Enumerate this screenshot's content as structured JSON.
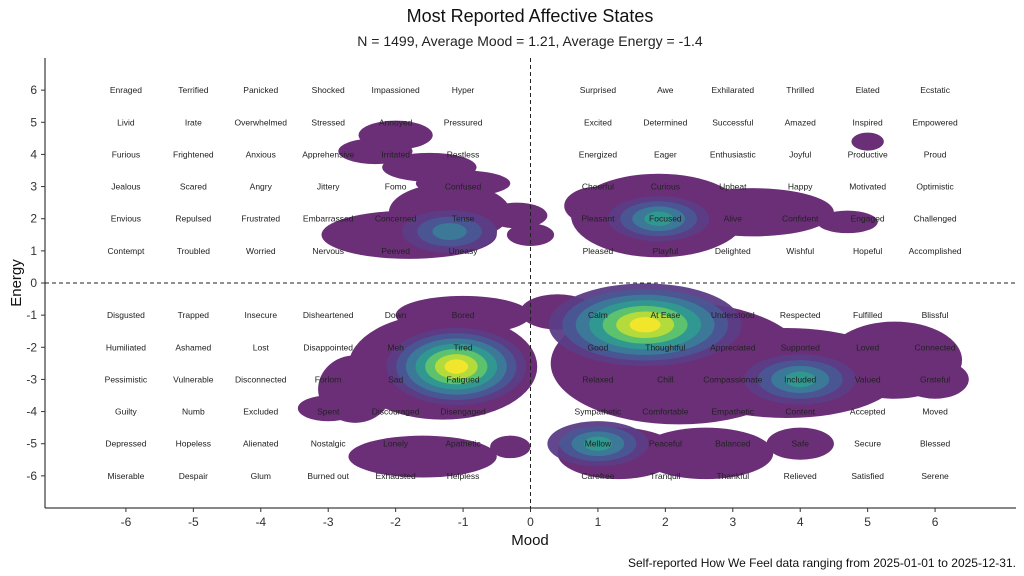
{
  "chart_data": {
    "type": "density",
    "title": "Most Reported Affective States",
    "subtitle": "N = 1499, Average Mood = 1.21, Average Energy = -1.4",
    "xlabel": "Mood",
    "ylabel": "Energy",
    "caption": "Self-reported How We Feel data ranging from 2025-01-01 to 2025-12-31.",
    "xlim": [
      -7.2,
      7.2
    ],
    "ylim": [
      -7.0,
      7.0
    ],
    "x_ticks": [
      -6,
      -5,
      -4,
      -3,
      -2,
      -1,
      0,
      1,
      2,
      3,
      4,
      5,
      6
    ],
    "y_ticks": [
      6,
      5,
      4,
      3,
      2,
      1,
      0,
      -1,
      -2,
      -3,
      -4,
      -5,
      -6
    ],
    "reference_lines": {
      "x": 0,
      "y": 0,
      "style": "dashed"
    },
    "grid": false,
    "palette": [
      "#6b2f78",
      "#5b3d86",
      "#4a5794",
      "#3b7b98",
      "#2f9a8f",
      "#5fc46b",
      "#b8dc3a",
      "#f5e72b"
    ],
    "density_peaks": [
      {
        "x": 1.7,
        "y": -1.3,
        "level": 8
      },
      {
        "x": -1.1,
        "y": -2.6,
        "level": 8
      },
      {
        "x": 1.9,
        "y": 2.0,
        "level": 5
      },
      {
        "x": 4.0,
        "y": -3.0,
        "level": 5
      },
      {
        "x": -1.2,
        "y": 1.6,
        "level": 4
      },
      {
        "x": 1.0,
        "y": -5.0,
        "level": 5
      },
      {
        "x": 5.0,
        "y": 4.4,
        "level": 1
      }
    ],
    "emotions": [
      {
        "label": "Enraged",
        "x": -6,
        "y": 6
      },
      {
        "label": "Terrified",
        "x": -5,
        "y": 6
      },
      {
        "label": "Panicked",
        "x": -4,
        "y": 6
      },
      {
        "label": "Shocked",
        "x": -3,
        "y": 6
      },
      {
        "label": "Impassioned",
        "x": -2,
        "y": 6
      },
      {
        "label": "Hyper",
        "x": -1,
        "y": 6
      },
      {
        "label": "Surprised",
        "x": 1,
        "y": 6
      },
      {
        "label": "Awe",
        "x": 2,
        "y": 6
      },
      {
        "label": "Exhilarated",
        "x": 3,
        "y": 6
      },
      {
        "label": "Thrilled",
        "x": 4,
        "y": 6
      },
      {
        "label": "Elated",
        "x": 5,
        "y": 6
      },
      {
        "label": "Ecstatic",
        "x": 6,
        "y": 6
      },
      {
        "label": "Livid",
        "x": -6,
        "y": 5
      },
      {
        "label": "Irate",
        "x": -5,
        "y": 5
      },
      {
        "label": "Overwhelmed",
        "x": -4,
        "y": 5
      },
      {
        "label": "Stressed",
        "x": -3,
        "y": 5
      },
      {
        "label": "Annoyed",
        "x": -2,
        "y": 5
      },
      {
        "label": "Pressured",
        "x": -1,
        "y": 5
      },
      {
        "label": "Excited",
        "x": 1,
        "y": 5
      },
      {
        "label": "Determined",
        "x": 2,
        "y": 5
      },
      {
        "label": "Successful",
        "x": 3,
        "y": 5
      },
      {
        "label": "Amazed",
        "x": 4,
        "y": 5
      },
      {
        "label": "Inspired",
        "x": 5,
        "y": 5
      },
      {
        "label": "Empowered",
        "x": 6,
        "y": 5
      },
      {
        "label": "Furious",
        "x": -6,
        "y": 4
      },
      {
        "label": "Frightened",
        "x": -5,
        "y": 4
      },
      {
        "label": "Anxious",
        "x": -4,
        "y": 4
      },
      {
        "label": "Apprehensive",
        "x": -3,
        "y": 4
      },
      {
        "label": "Irritated",
        "x": -2,
        "y": 4
      },
      {
        "label": "Restless",
        "x": -1,
        "y": 4
      },
      {
        "label": "Energized",
        "x": 1,
        "y": 4
      },
      {
        "label": "Eager",
        "x": 2,
        "y": 4
      },
      {
        "label": "Enthusiastic",
        "x": 3,
        "y": 4
      },
      {
        "label": "Joyful",
        "x": 4,
        "y": 4
      },
      {
        "label": "Productive",
        "x": 5,
        "y": 4
      },
      {
        "label": "Proud",
        "x": 6,
        "y": 4
      },
      {
        "label": "Jealous",
        "x": -6,
        "y": 3
      },
      {
        "label": "Scared",
        "x": -5,
        "y": 3
      },
      {
        "label": "Angry",
        "x": -4,
        "y": 3
      },
      {
        "label": "Jittery",
        "x": -3,
        "y": 3
      },
      {
        "label": "Fomo",
        "x": -2,
        "y": 3
      },
      {
        "label": "Confused",
        "x": -1,
        "y": 3
      },
      {
        "label": "Cheerful",
        "x": 1,
        "y": 3
      },
      {
        "label": "Curious",
        "x": 2,
        "y": 3
      },
      {
        "label": "Upbeat",
        "x": 3,
        "y": 3
      },
      {
        "label": "Happy",
        "x": 4,
        "y": 3
      },
      {
        "label": "Motivated",
        "x": 5,
        "y": 3
      },
      {
        "label": "Optimistic",
        "x": 6,
        "y": 3
      },
      {
        "label": "Envious",
        "x": -6,
        "y": 2
      },
      {
        "label": "Repulsed",
        "x": -5,
        "y": 2
      },
      {
        "label": "Frustrated",
        "x": -4,
        "y": 2
      },
      {
        "label": "Embarrassed",
        "x": -3,
        "y": 2
      },
      {
        "label": "Concerned",
        "x": -2,
        "y": 2
      },
      {
        "label": "Tense",
        "x": -1,
        "y": 2
      },
      {
        "label": "Pleasant",
        "x": 1,
        "y": 2
      },
      {
        "label": "Focused",
        "x": 2,
        "y": 2
      },
      {
        "label": "Alive",
        "x": 3,
        "y": 2
      },
      {
        "label": "Confident",
        "x": 4,
        "y": 2
      },
      {
        "label": "Engaged",
        "x": 5,
        "y": 2
      },
      {
        "label": "Challenged",
        "x": 6,
        "y": 2
      },
      {
        "label": "Contempt",
        "x": -6,
        "y": 1
      },
      {
        "label": "Troubled",
        "x": -5,
        "y": 1
      },
      {
        "label": "Worried",
        "x": -4,
        "y": 1
      },
      {
        "label": "Nervous",
        "x": -3,
        "y": 1
      },
      {
        "label": "Peeved",
        "x": -2,
        "y": 1
      },
      {
        "label": "Uneasy",
        "x": -1,
        "y": 1
      },
      {
        "label": "Pleased",
        "x": 1,
        "y": 1
      },
      {
        "label": "Playful",
        "x": 2,
        "y": 1
      },
      {
        "label": "Delighted",
        "x": 3,
        "y": 1
      },
      {
        "label": "Wishful",
        "x": 4,
        "y": 1
      },
      {
        "label": "Hopeful",
        "x": 5,
        "y": 1
      },
      {
        "label": "Accomplished",
        "x": 6,
        "y": 1
      },
      {
        "label": "Disgusted",
        "x": -6,
        "y": -1
      },
      {
        "label": "Trapped",
        "x": -5,
        "y": -1
      },
      {
        "label": "Insecure",
        "x": -4,
        "y": -1
      },
      {
        "label": "Disheartened",
        "x": -3,
        "y": -1
      },
      {
        "label": "Down",
        "x": -2,
        "y": -1
      },
      {
        "label": "Bored",
        "x": -1,
        "y": -1
      },
      {
        "label": "Calm",
        "x": 1,
        "y": -1
      },
      {
        "label": "At Ease",
        "x": 2,
        "y": -1
      },
      {
        "label": "Understood",
        "x": 3,
        "y": -1
      },
      {
        "label": "Respected",
        "x": 4,
        "y": -1
      },
      {
        "label": "Fulfilled",
        "x": 5,
        "y": -1
      },
      {
        "label": "Blissful",
        "x": 6,
        "y": -1
      },
      {
        "label": "Humiliated",
        "x": -6,
        "y": -2
      },
      {
        "label": "Ashamed",
        "x": -5,
        "y": -2
      },
      {
        "label": "Lost",
        "x": -4,
        "y": -2
      },
      {
        "label": "Disappointed",
        "x": -3,
        "y": -2
      },
      {
        "label": "Meh",
        "x": -2,
        "y": -2
      },
      {
        "label": "Tired",
        "x": -1,
        "y": -2
      },
      {
        "label": "Good",
        "x": 1,
        "y": -2
      },
      {
        "label": "Thoughtful",
        "x": 2,
        "y": -2
      },
      {
        "label": "Appreciated",
        "x": 3,
        "y": -2
      },
      {
        "label": "Supported",
        "x": 4,
        "y": -2
      },
      {
        "label": "Loved",
        "x": 5,
        "y": -2
      },
      {
        "label": "Connected",
        "x": 6,
        "y": -2
      },
      {
        "label": "Pessimistic",
        "x": -6,
        "y": -3
      },
      {
        "label": "Vulnerable",
        "x": -5,
        "y": -3
      },
      {
        "label": "Disconnected",
        "x": -4,
        "y": -3
      },
      {
        "label": "Forlorn",
        "x": -3,
        "y": -3
      },
      {
        "label": "Sad",
        "x": -2,
        "y": -3
      },
      {
        "label": "Fatigued",
        "x": -1,
        "y": -3
      },
      {
        "label": "Relaxed",
        "x": 1,
        "y": -3
      },
      {
        "label": "Chill",
        "x": 2,
        "y": -3
      },
      {
        "label": "Compassionate",
        "x": 3,
        "y": -3
      },
      {
        "label": "Included",
        "x": 4,
        "y": -3
      },
      {
        "label": "Valued",
        "x": 5,
        "y": -3
      },
      {
        "label": "Grateful",
        "x": 6,
        "y": -3
      },
      {
        "label": "Guilty",
        "x": -6,
        "y": -4
      },
      {
        "label": "Numb",
        "x": -5,
        "y": -4
      },
      {
        "label": "Excluded",
        "x": -4,
        "y": -4
      },
      {
        "label": "Spent",
        "x": -3,
        "y": -4
      },
      {
        "label": "Discouraged",
        "x": -2,
        "y": -4
      },
      {
        "label": "Disengaged",
        "x": -1,
        "y": -4
      },
      {
        "label": "Sympathetic",
        "x": 1,
        "y": -4
      },
      {
        "label": "Comfortable",
        "x": 2,
        "y": -4
      },
      {
        "label": "Empathetic",
        "x": 3,
        "y": -4
      },
      {
        "label": "Content",
        "x": 4,
        "y": -4
      },
      {
        "label": "Accepted",
        "x": 5,
        "y": -4
      },
      {
        "label": "Moved",
        "x": 6,
        "y": -4
      },
      {
        "label": "Depressed",
        "x": -6,
        "y": -5
      },
      {
        "label": "Hopeless",
        "x": -5,
        "y": -5
      },
      {
        "label": "Alienated",
        "x": -4,
        "y": -5
      },
      {
        "label": "Nostalgic",
        "x": -3,
        "y": -5
      },
      {
        "label": "Lonely",
        "x": -2,
        "y": -5
      },
      {
        "label": "Apathetic",
        "x": -1,
        "y": -5
      },
      {
        "label": "Mellow",
        "x": 1,
        "y": -5
      },
      {
        "label": "Peaceful",
        "x": 2,
        "y": -5
      },
      {
        "label": "Balanced",
        "x": 3,
        "y": -5
      },
      {
        "label": "Safe",
        "x": 4,
        "y": -5
      },
      {
        "label": "Secure",
        "x": 5,
        "y": -5
      },
      {
        "label": "Blessed",
        "x": 6,
        "y": -5
      },
      {
        "label": "Miserable",
        "x": -6,
        "y": -6
      },
      {
        "label": "Despair",
        "x": -5,
        "y": -6
      },
      {
        "label": "Glum",
        "x": -4,
        "y": -6
      },
      {
        "label": "Burned out",
        "x": -3,
        "y": -6
      },
      {
        "label": "Exhausted",
        "x": -2,
        "y": -6
      },
      {
        "label": "Helpless",
        "x": -1,
        "y": -6
      },
      {
        "label": "Carefree",
        "x": 1,
        "y": -6
      },
      {
        "label": "Tranquil",
        "x": 2,
        "y": -6
      },
      {
        "label": "Thankful",
        "x": 3,
        "y": -6
      },
      {
        "label": "Relieved",
        "x": 4,
        "y": -6
      },
      {
        "label": "Satisfied",
        "x": 5,
        "y": -6
      },
      {
        "label": "Serene",
        "x": 6,
        "y": -6
      }
    ]
  }
}
